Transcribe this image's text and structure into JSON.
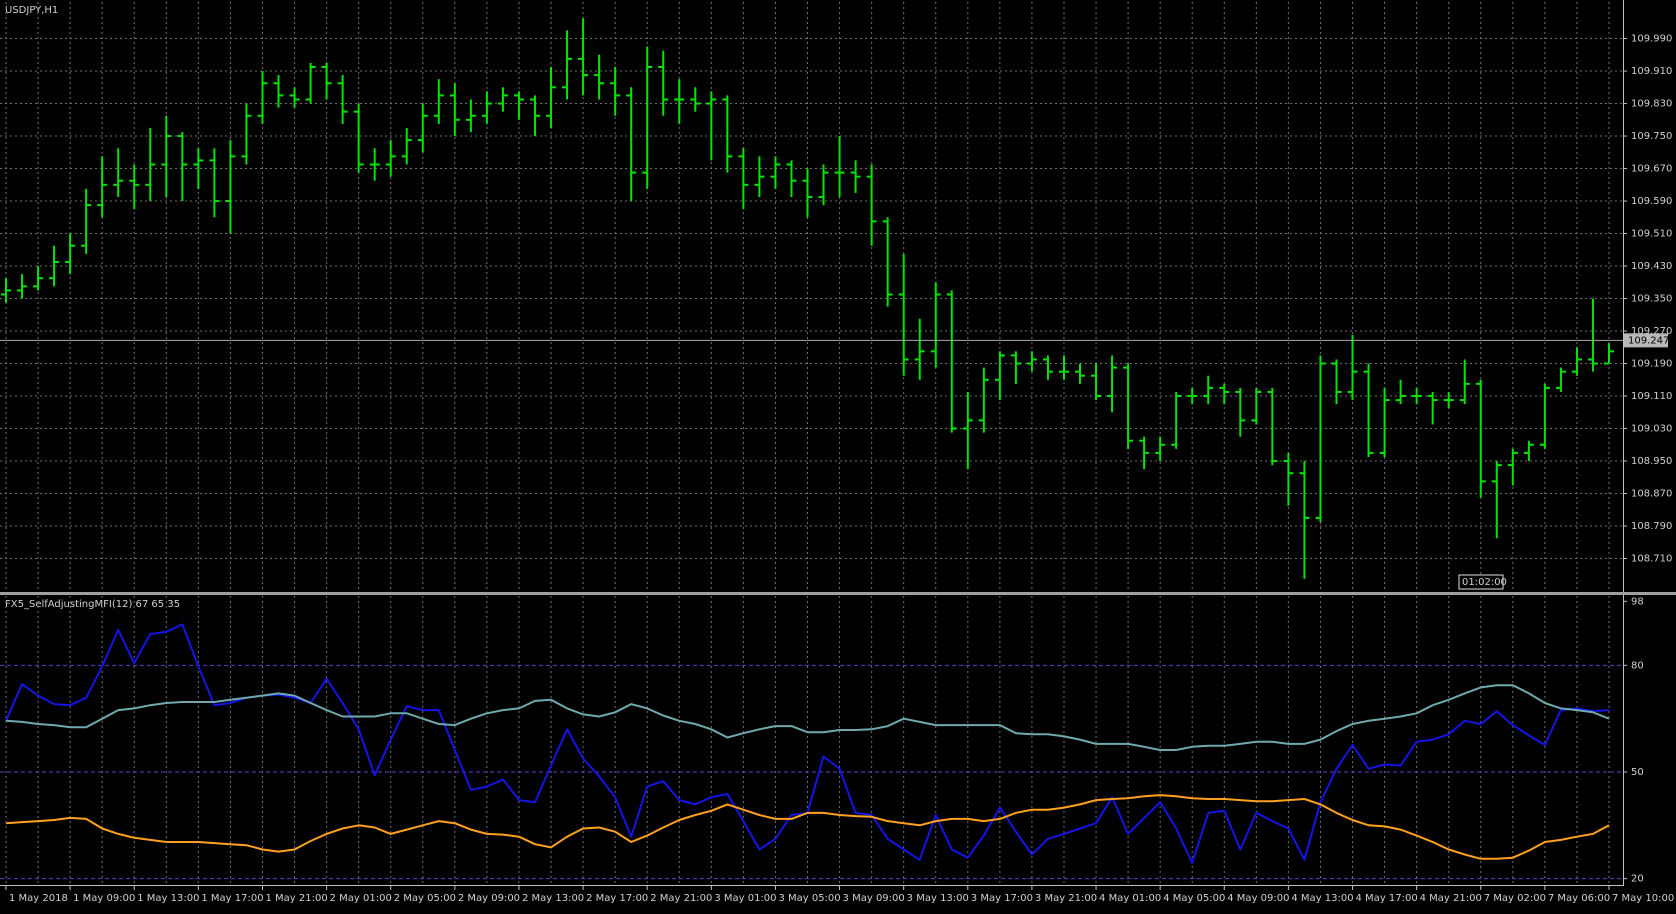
{
  "chart_data": [
    {
      "type": "ohlc",
      "title": "USDJPY,H1",
      "color": "#00e600",
      "categories": [
        "1 May 2018",
        null,
        null,
        null,
        "1 May 09:00",
        null,
        null,
        null,
        "1 May 13:00",
        null,
        null,
        null,
        "1 May 17:00",
        null,
        null,
        null,
        "1 May 21:00",
        null,
        null,
        null,
        "2 May 01:00",
        null,
        null,
        null,
        "2 May 05:00",
        null,
        null,
        null,
        "2 May 09:00",
        null,
        null,
        null,
        "2 May 13:00",
        null,
        null,
        null,
        "2 May 17:00",
        null,
        null,
        null,
        "2 May 21:00",
        null,
        null,
        null,
        "3 May 01:00",
        null,
        null,
        null,
        "3 May 05:00",
        null,
        null,
        null,
        "3 May 09:00",
        null,
        null,
        null,
        "3 May 13:00",
        null,
        null,
        null,
        "3 May 17:00",
        null,
        null,
        null,
        "3 May 21:00",
        null,
        null,
        null,
        "4 May 01:00",
        null,
        null,
        null,
        "4 May 05:00",
        null,
        null,
        null,
        "4 May 09:00",
        null,
        null,
        null,
        "4 May 13:00",
        null,
        null,
        null,
        "4 May 17:00",
        null,
        null,
        null,
        "4 May 21:00",
        null,
        null,
        null,
        "7 May 02:00",
        null,
        null,
        null,
        "7 May 06:00",
        null,
        null,
        null,
        "7 May 10:00"
      ],
      "open": [
        109.36,
        109.37,
        109.38,
        109.4,
        109.44,
        109.48,
        109.58,
        109.63,
        109.64,
        109.63,
        109.68,
        109.75,
        109.68,
        109.69,
        109.59,
        109.7,
        109.8,
        109.88,
        109.85,
        109.84,
        109.92,
        109.88,
        109.81,
        109.68,
        109.68,
        109.7,
        109.74,
        109.8,
        109.85,
        109.79,
        109.8,
        109.83,
        109.85,
        109.84,
        109.8,
        109.87,
        109.94,
        109.9,
        109.88,
        109.85,
        109.66,
        109.92,
        109.84,
        109.84,
        109.83,
        109.84,
        109.7,
        109.63,
        109.65,
        109.68,
        109.64,
        109.6,
        109.66,
        109.66,
        109.65,
        109.54,
        109.36,
        109.2,
        109.22,
        109.36,
        109.03,
        109.05,
        109.15,
        109.21,
        109.19,
        109.2,
        109.17,
        109.17,
        109.16,
        109.11,
        109.18,
        109.0,
        108.97,
        108.99,
        109.11,
        109.11,
        109.13,
        109.12,
        109.05,
        109.12,
        108.95,
        108.92,
        108.81,
        109.19,
        109.12,
        109.17,
        108.97,
        109.1,
        109.11,
        109.11,
        109.1,
        109.1,
        109.14,
        108.9,
        108.94,
        108.97,
        108.99,
        109.13,
        109.17,
        109.2,
        109.19
      ],
      "high": [
        109.4,
        109.41,
        109.43,
        109.48,
        109.51,
        109.62,
        109.7,
        109.72,
        109.68,
        109.77,
        109.8,
        109.76,
        109.72,
        109.72,
        109.74,
        109.83,
        109.91,
        109.9,
        109.87,
        109.93,
        109.93,
        109.9,
        109.83,
        109.72,
        109.74,
        109.77,
        109.83,
        109.89,
        109.88,
        109.84,
        109.86,
        109.87,
        109.86,
        109.85,
        109.92,
        110.01,
        110.04,
        109.95,
        109.92,
        109.87,
        109.97,
        109.96,
        109.89,
        109.87,
        109.86,
        109.85,
        109.72,
        109.7,
        109.7,
        109.69,
        109.67,
        109.68,
        109.75,
        109.69,
        109.68,
        109.55,
        109.46,
        109.3,
        109.39,
        109.37,
        109.12,
        109.18,
        109.22,
        109.22,
        109.22,
        109.21,
        109.21,
        109.19,
        109.19,
        109.21,
        109.19,
        109.01,
        109.01,
        109.12,
        109.13,
        109.16,
        109.14,
        109.13,
        109.13,
        109.13,
        108.97,
        108.95,
        109.21,
        109.2,
        109.26,
        109.19,
        109.13,
        109.15,
        109.13,
        109.12,
        109.12,
        109.2,
        109.15,
        108.95,
        108.98,
        109.0,
        109.14,
        109.18,
        109.23,
        109.35,
        109.24
      ],
      "low": [
        109.34,
        109.35,
        109.37,
        109.38,
        109.41,
        109.46,
        109.55,
        109.6,
        109.57,
        109.59,
        109.6,
        109.59,
        109.62,
        109.55,
        109.51,
        109.68,
        109.78,
        109.82,
        109.82,
        109.83,
        109.84,
        109.78,
        109.66,
        109.64,
        109.65,
        109.68,
        109.71,
        109.78,
        109.75,
        109.76,
        109.78,
        109.81,
        109.79,
        109.75,
        109.77,
        109.84,
        109.85,
        109.84,
        109.8,
        109.59,
        109.62,
        109.8,
        109.78,
        109.81,
        109.69,
        109.66,
        109.57,
        109.6,
        109.62,
        109.6,
        109.55,
        109.58,
        109.6,
        109.61,
        109.48,
        109.33,
        109.16,
        109.15,
        109.18,
        109.02,
        108.93,
        109.02,
        109.1,
        109.14,
        109.17,
        109.15,
        109.15,
        109.14,
        109.1,
        109.07,
        108.98,
        108.93,
        108.95,
        108.98,
        109.09,
        109.09,
        109.09,
        109.01,
        109.04,
        108.94,
        108.84,
        108.66,
        108.8,
        109.09,
        109.1,
        108.96,
        108.96,
        109.09,
        109.09,
        109.04,
        109.08,
        109.09,
        108.86,
        108.76,
        108.89,
        108.95,
        108.98,
        109.12,
        109.16,
        109.17,
        109.19
      ],
      "close": [
        109.37,
        109.38,
        109.4,
        109.44,
        109.48,
        109.58,
        109.63,
        109.64,
        109.63,
        109.68,
        109.75,
        109.68,
        109.69,
        109.59,
        109.7,
        109.8,
        109.88,
        109.85,
        109.84,
        109.92,
        109.88,
        109.81,
        109.68,
        109.68,
        109.7,
        109.74,
        109.8,
        109.85,
        109.79,
        109.8,
        109.83,
        109.85,
        109.84,
        109.8,
        109.87,
        109.94,
        109.9,
        109.88,
        109.85,
        109.66,
        109.92,
        109.84,
        109.84,
        109.83,
        109.84,
        109.7,
        109.63,
        109.65,
        109.68,
        109.64,
        109.6,
        109.66,
        109.66,
        109.65,
        109.54,
        109.36,
        109.2,
        109.22,
        109.36,
        109.03,
        109.05,
        109.15,
        109.21,
        109.19,
        109.2,
        109.17,
        109.17,
        109.16,
        109.11,
        109.18,
        109.0,
        108.97,
        108.99,
        109.11,
        109.11,
        109.13,
        109.12,
        109.05,
        109.12,
        108.95,
        108.92,
        108.81,
        109.19,
        109.12,
        109.17,
        108.97,
        109.1,
        109.11,
        109.11,
        109.1,
        109.1,
        109.14,
        108.9,
        108.94,
        108.97,
        108.99,
        109.13,
        109.17,
        109.2,
        109.19,
        109.22
      ],
      "ylim": [
        108.63,
        110.08
      ],
      "yticks": [
        {
          "value": 108.71,
          "label": "108.710"
        },
        {
          "value": 108.79,
          "label": "108.790"
        },
        {
          "value": 108.87,
          "label": "108.870"
        },
        {
          "value": 108.95,
          "label": "108.950"
        },
        {
          "value": 109.03,
          "label": "109.030"
        },
        {
          "value": 109.11,
          "label": "109.110"
        },
        {
          "value": 109.19,
          "label": "109.190"
        },
        {
          "value": 109.27,
          "label": "109.270"
        },
        {
          "value": 109.35,
          "label": "109.350"
        },
        {
          "value": 109.43,
          "label": "109.430"
        },
        {
          "value": 109.51,
          "label": "109.510"
        },
        {
          "value": 109.59,
          "label": "109.590"
        },
        {
          "value": 109.67,
          "label": "109.670"
        },
        {
          "value": 109.75,
          "label": "109.750"
        },
        {
          "value": 109.83,
          "label": "109.830"
        },
        {
          "value": 109.91,
          "label": "109.910"
        },
        {
          "value": 109.99,
          "label": "109.990"
        }
      ],
      "grid": true,
      "current_price": 109.247,
      "timer_label": "01:02:00"
    },
    {
      "type": "line",
      "title": "FX5_SelfAdjustingMFI(12) 67 65 35",
      "series": [
        {
          "color": "#1414e6",
          "values": [
            64.4,
            74.7,
            71.5,
            69.1,
            68.8,
            70.9,
            79.7,
            90,
            80.6,
            88.8,
            89.4,
            91.5,
            79.7,
            68.8,
            69.4,
            70.9,
            71.5,
            71.8,
            70.9,
            69.4,
            76.2,
            69.4,
            62,
            49.1,
            59.1,
            68.5,
            67.4,
            67.4,
            56.2,
            45,
            45.9,
            47.9,
            42.1,
            41.5,
            51.8,
            62,
            53.8,
            48.8,
            42.9,
            31.8,
            45.9,
            47.4,
            42.1,
            40.9,
            42.9,
            43.8,
            36.2,
            28.2,
            31.2,
            37.9,
            38.5,
            54.4,
            50.9,
            38.5,
            37.9,
            31.2,
            28.2,
            25.3,
            37.9,
            28.2,
            25.9,
            32.1,
            40,
            33.2,
            26.8,
            31.2,
            32.6,
            34.1,
            35.6,
            42.9,
            32.6,
            37.1,
            41.5,
            34.1,
            24.4,
            38.5,
            39.1,
            28.2,
            38.5,
            36.2,
            34.1,
            25.3,
            41.5,
            50.9,
            57.6,
            50.9,
            52.1,
            51.8,
            58.5,
            59.1,
            60.6,
            64.4,
            63.5,
            67.1,
            63.2,
            60.3,
            57.6,
            67.4,
            67.9,
            67.1,
            67.4
          ]
        },
        {
          "color": "#6fa9ae",
          "values": [
            64.4,
            64.1,
            63.5,
            63.2,
            62.6,
            62.6,
            65,
            67.4,
            67.9,
            68.8,
            69.4,
            69.7,
            69.7,
            69.7,
            70.3,
            70.9,
            71.5,
            72.1,
            71.5,
            69.4,
            67.4,
            65.6,
            65.6,
            65.6,
            66.5,
            66.5,
            65,
            63.5,
            63.2,
            65,
            66.5,
            67.4,
            67.9,
            70,
            70.3,
            67.9,
            66.2,
            65.6,
            66.8,
            69.1,
            67.9,
            65.9,
            64.4,
            63.5,
            62,
            59.7,
            60.9,
            62,
            62.9,
            62.9,
            61.2,
            61.2,
            61.8,
            61.8,
            62,
            62.9,
            65,
            64.1,
            63.2,
            63.2,
            63.2,
            63.2,
            63.2,
            60.9,
            60.6,
            60.6,
            60,
            59.1,
            57.9,
            57.9,
            57.9,
            57.1,
            56.2,
            56.2,
            57.1,
            57.4,
            57.4,
            57.9,
            58.5,
            58.5,
            57.9,
            57.9,
            59.1,
            61.5,
            63.5,
            64.4,
            65,
            65.6,
            66.5,
            68.8,
            70.3,
            72.1,
            73.8,
            74.4,
            74.4,
            72.1,
            69.4,
            67.9,
            67.4,
            66.8,
            65
          ]
        },
        {
          "color": "#ffa020",
          "values": [
            35.6,
            35.9,
            36.2,
            36.5,
            37.1,
            36.8,
            34.1,
            32.6,
            31.5,
            30.9,
            30.3,
            30.3,
            30.3,
            30,
            29.7,
            29.4,
            28.2,
            27.6,
            28.2,
            30.6,
            32.6,
            34.1,
            35,
            34.4,
            32.6,
            33.8,
            35,
            36.2,
            35.6,
            33.8,
            32.6,
            32.4,
            31.8,
            29.7,
            28.8,
            31.8,
            34.1,
            34.4,
            33.2,
            30.3,
            32.1,
            34.4,
            36.5,
            37.9,
            39.1,
            40.9,
            39.4,
            37.9,
            36.8,
            36.8,
            38.5,
            38.5,
            37.9,
            37.6,
            37.4,
            36.2,
            35.6,
            35,
            36.2,
            36.8,
            36.8,
            36.2,
            36.8,
            38.5,
            39.4,
            39.4,
            40,
            40.9,
            42.1,
            42.4,
            42.6,
            43.2,
            43.5,
            43.2,
            42.6,
            42.4,
            42.4,
            42.1,
            41.8,
            41.8,
            42.1,
            42.4,
            40.9,
            38.5,
            36.5,
            35,
            34.7,
            33.8,
            32.1,
            30.3,
            28.2,
            26.8,
            25.6,
            25.6,
            25.9,
            27.9,
            30.3,
            30.9,
            31.8,
            32.6,
            35
          ]
        }
      ],
      "ylim": [
        18.5,
        99.5
      ],
      "yticks": [
        20,
        50,
        80,
        98
      ],
      "level_lines": [
        20,
        50,
        80
      ],
      "level_color": "#6a3cc8"
    }
  ]
}
